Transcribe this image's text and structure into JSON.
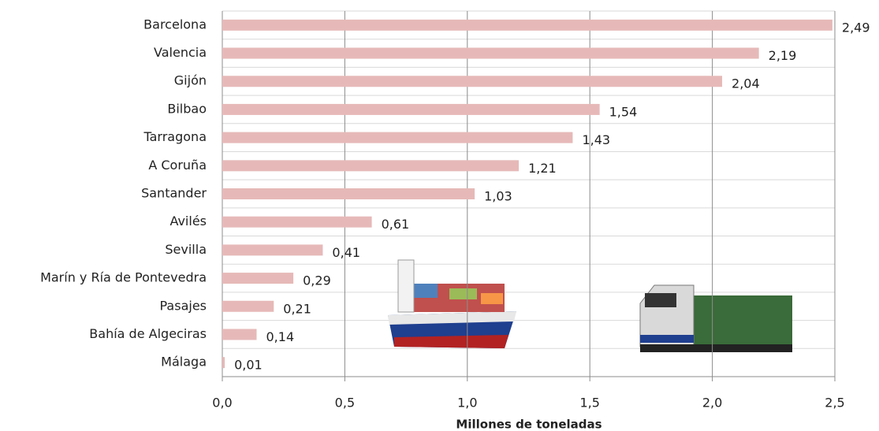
{
  "chart_data": {
    "type": "bar",
    "orientation": "horizontal",
    "x_label": "Millones de toneladas",
    "categories": [
      "Barcelona",
      "Valencia",
      "Gijón",
      "Bilbao",
      "Tarragona",
      "A Coruña",
      "Santander",
      "Avilés",
      "Sevilla",
      "Marín y Ría de Pontevedra",
      "Pasajes",
      "Bahía de Algeciras",
      "Málaga"
    ],
    "values": [
      2.49,
      2.19,
      2.04,
      1.54,
      1.43,
      1.21,
      1.03,
      0.61,
      0.41,
      0.29,
      0.21,
      0.14,
      0.01
    ],
    "value_labels": [
      "2,49",
      "2,19",
      "2,04",
      "1,54",
      "1,43",
      "1,21",
      "1,03",
      "0,61",
      "0,41",
      "0,29",
      "0,21",
      "0,14",
      "0,01"
    ],
    "color": "#e6b9b8",
    "xlim": [
      0,
      2.5
    ],
    "xticks": [
      {
        "value": 0,
        "label": "0,0"
      },
      {
        "value": 0.5,
        "label": "0,5"
      },
      {
        "value": 1,
        "label": "1,0"
      },
      {
        "value": 1.5,
        "label": "1,5"
      },
      {
        "value": 2,
        "label": "2,0"
      },
      {
        "value": 2.5,
        "label": "2,5"
      }
    ],
    "grid": true
  }
}
